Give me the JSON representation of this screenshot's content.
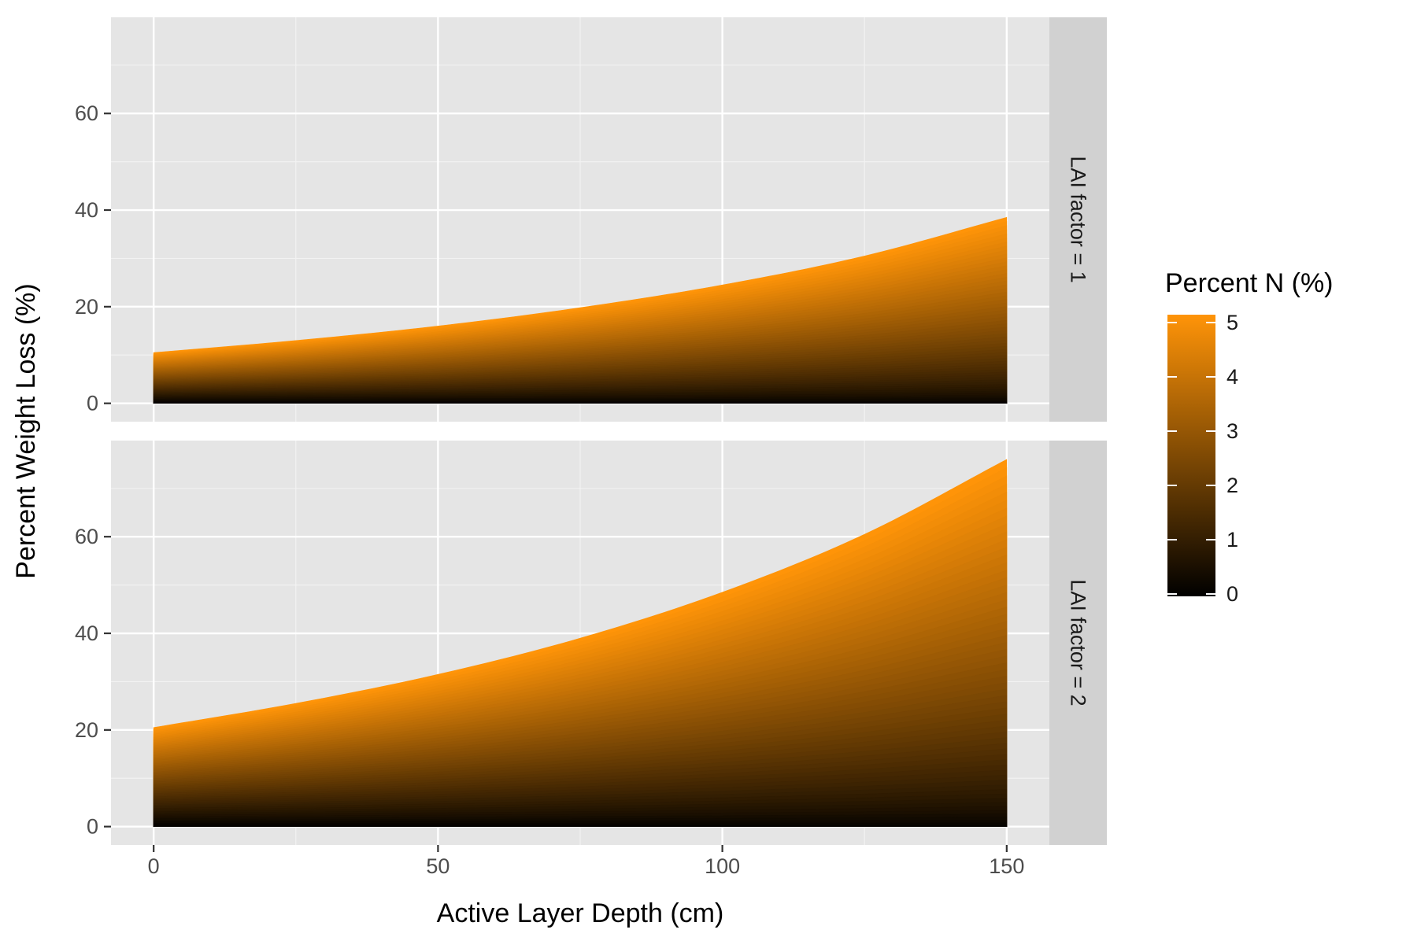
{
  "chart_data": {
    "type": "area",
    "xlabel": "Active Layer Depth (cm)",
    "ylabel": "Percent Weight Loss (%)",
    "x_ticks": [
      0,
      50,
      100,
      150
    ],
    "y_ticks": [
      0,
      20,
      40,
      60
    ],
    "xlim": [
      -7.5,
      157.5
    ],
    "ylim": [
      -3.8,
      79.9
    ],
    "x_domain": [
      0,
      150
    ],
    "grid": true,
    "legend": {
      "title": "Percent N (%)",
      "position": "right",
      "ticks": [
        0,
        1,
        2,
        3,
        4,
        5
      ],
      "low_color": "#000000",
      "high_color": "#ff9408"
    },
    "panel_background": "#e5e5e5",
    "strip_background": "#d1d1d1",
    "fill_levels_percent_n": {
      "min": 0,
      "max": 5,
      "count": 60
    },
    "facets": [
      {
        "strip_label": "LAI factor = 1",
        "curve_at_max_n": {
          "x": [
            0,
            25,
            50,
            75,
            100,
            125,
            150
          ],
          "y": [
            10.5,
            13,
            16,
            19.8,
            24.5,
            30.5,
            38.5
          ]
        }
      },
      {
        "strip_label": "LAI factor = 2",
        "curve_at_max_n": {
          "x": [
            0,
            25,
            50,
            75,
            100,
            125,
            150
          ],
          "y": [
            20.5,
            25.5,
            31.5,
            39,
            48.5,
            60.5,
            76
          ]
        }
      }
    ]
  }
}
